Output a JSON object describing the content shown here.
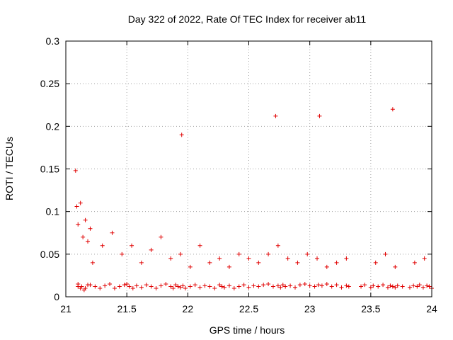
{
  "chart_data": {
    "type": "scatter",
    "title": "Day 322 of 2022, Rate Of TEC Index for receiver ab11",
    "xlabel": "GPS time / hours",
    "ylabel": "ROTI / TECUs",
    "xlim": [
      21,
      24
    ],
    "ylim": [
      0,
      0.3
    ],
    "x_ticks": [
      21,
      21.5,
      22,
      22.5,
      23,
      23.5,
      24
    ],
    "x_tick_labels": [
      "21",
      "21.5",
      "22",
      "22.5",
      "23",
      "23.5",
      "24"
    ],
    "y_ticks": [
      0,
      0.05,
      0.1,
      0.15,
      0.2,
      0.25,
      0.3
    ],
    "y_tick_labels": [
      "0",
      "0.05",
      "0.1",
      "0.15",
      "0.2",
      "0.25",
      "0.3"
    ],
    "grid": true,
    "marker": "+",
    "point_color": "#e00000",
    "series": [
      {
        "x": [
          21.08,
          21.1,
          21.12,
          21.14,
          21.16,
          21.18,
          21.2,
          21.1,
          21.12,
          21.15,
          21.18,
          21.1,
          21.13,
          21.16,
          21.2,
          21.24,
          21.28,
          21.32,
          21.36,
          21.4,
          21.44,
          21.48,
          21.5,
          21.52,
          21.55,
          21.58,
          21.62,
          21.66,
          21.7,
          21.74,
          21.78,
          21.82,
          21.86,
          21.88,
          21.9,
          21.92,
          21.94,
          21.96,
          21.98,
          22.02,
          22.06,
          22.1,
          22.14,
          22.18,
          22.22,
          22.26,
          22.28,
          22.3,
          22.34,
          22.38,
          22.42,
          22.46,
          22.5,
          22.54,
          22.58,
          22.62,
          22.66,
          22.7,
          22.74,
          22.76,
          22.78,
          22.8,
          22.84,
          22.88,
          22.92,
          22.96,
          23.0,
          23.04,
          23.07,
          23.1,
          23.14,
          23.18,
          23.22,
          23.26,
          23.3,
          23.32,
          23.42,
          23.45,
          23.5,
          23.52,
          23.56,
          23.6,
          23.64,
          23.66,
          23.68,
          23.7,
          23.72,
          23.76,
          23.82,
          23.85,
          23.88,
          23.9,
          23.93,
          23.96,
          23.98,
          24.0,
          21.22,
          21.3,
          21.38,
          21.46,
          21.54,
          21.62,
          21.7,
          21.78,
          21.86,
          21.94,
          22.02,
          22.1,
          22.18,
          22.26,
          22.34,
          22.42,
          22.5,
          22.58,
          22.66,
          22.74,
          22.82,
          22.9,
          22.98,
          23.06,
          23.14,
          23.22,
          23.3,
          23.54,
          23.62,
          23.7,
          23.86,
          23.94,
          21.09,
          21.95,
          22.72,
          23.08,
          23.68
        ],
        "y": [
          0.148,
          0.085,
          0.11,
          0.07,
          0.09,
          0.065,
          0.08,
          0.012,
          0.01,
          0.008,
          0.014,
          0.015,
          0.012,
          0.01,
          0.014,
          0.012,
          0.01,
          0.013,
          0.015,
          0.01,
          0.012,
          0.014,
          0.015,
          0.012,
          0.01,
          0.013,
          0.011,
          0.014,
          0.012,
          0.01,
          0.013,
          0.015,
          0.012,
          0.01,
          0.014,
          0.012,
          0.011,
          0.013,
          0.01,
          0.012,
          0.014,
          0.011,
          0.013,
          0.012,
          0.01,
          0.014,
          0.012,
          0.011,
          0.013,
          0.01,
          0.012,
          0.014,
          0.011,
          0.013,
          0.012,
          0.014,
          0.015,
          0.012,
          0.013,
          0.011,
          0.014,
          0.012,
          0.013,
          0.011,
          0.014,
          0.015,
          0.013,
          0.012,
          0.014,
          0.013,
          0.015,
          0.012,
          0.014,
          0.011,
          0.013,
          0.012,
          0.012,
          0.014,
          0.011,
          0.013,
          0.012,
          0.014,
          0.011,
          0.013,
          0.012,
          0.011,
          0.013,
          0.012,
          0.011,
          0.013,
          0.012,
          0.014,
          0.011,
          0.013,
          0.012,
          0.01,
          0.04,
          0.06,
          0.075,
          0.05,
          0.06,
          0.04,
          0.055,
          0.07,
          0.045,
          0.05,
          0.035,
          0.06,
          0.04,
          0.045,
          0.035,
          0.05,
          0.045,
          0.04,
          0.05,
          0.06,
          0.045,
          0.04,
          0.05,
          0.045,
          0.035,
          0.04,
          0.045,
          0.04,
          0.05,
          0.035,
          0.04,
          0.045,
          0.106,
          0.19,
          0.212,
          0.212,
          0.22
        ]
      }
    ]
  }
}
